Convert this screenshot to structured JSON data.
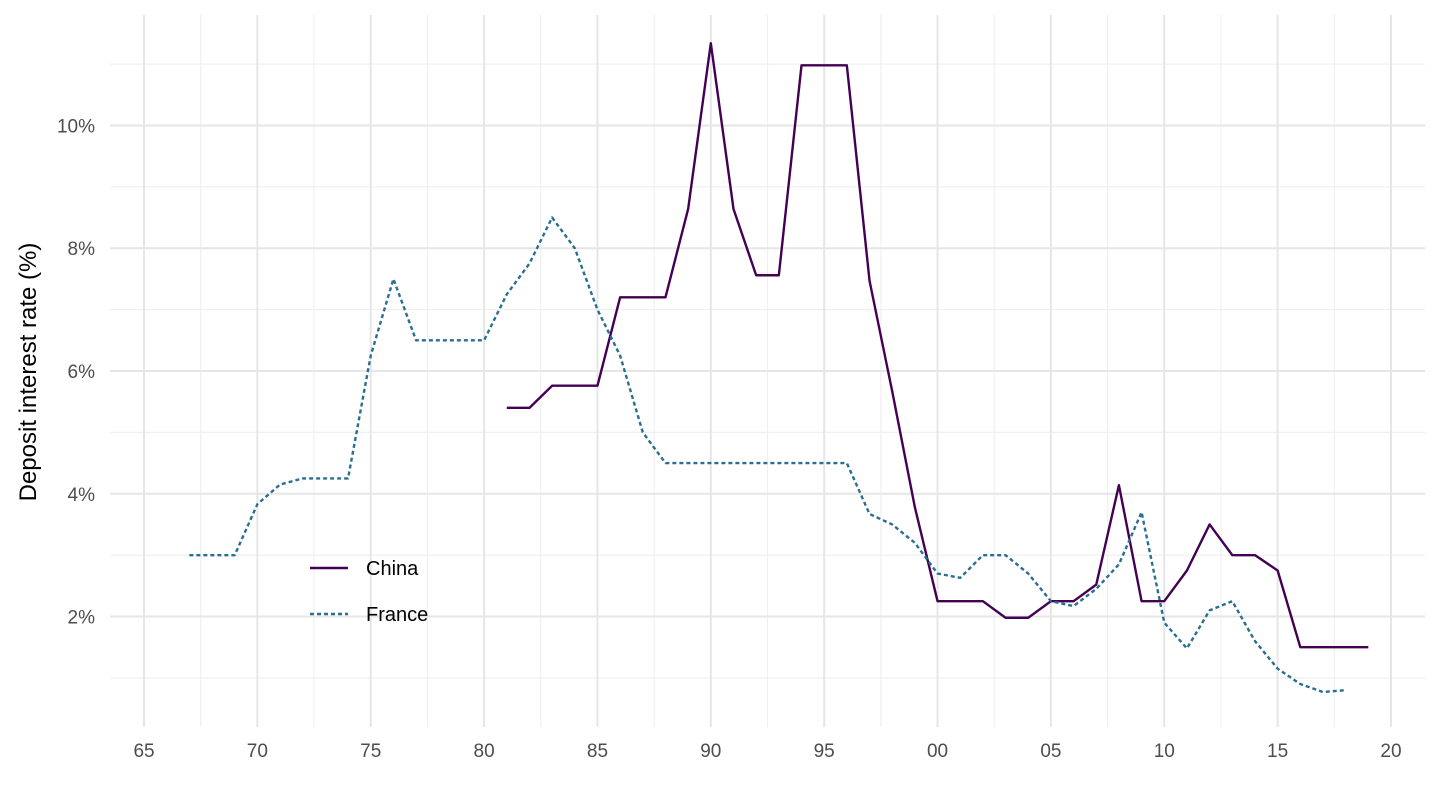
{
  "chart_data": {
    "type": "line",
    "title": "",
    "xlabel": "",
    "ylabel": "Deposit interest rate (%)",
    "xlim": [
      1963.5,
      2021.5
    ],
    "ylim": [
      0.2,
      11.8
    ],
    "x_ticks": [
      {
        "value": 1965,
        "label": "65"
      },
      {
        "value": 1970,
        "label": "70"
      },
      {
        "value": 1975,
        "label": "75"
      },
      {
        "value": 1980,
        "label": "80"
      },
      {
        "value": 1985,
        "label": "85"
      },
      {
        "value": 1990,
        "label": "90"
      },
      {
        "value": 1995,
        "label": "95"
      },
      {
        "value": 2000,
        "label": "00"
      },
      {
        "value": 2005,
        "label": "05"
      },
      {
        "value": 2010,
        "label": "10"
      },
      {
        "value": 2015,
        "label": "15"
      },
      {
        "value": 2020,
        "label": "20"
      }
    ],
    "y_ticks": [
      {
        "value": 2,
        "label": "2%"
      },
      {
        "value": 4,
        "label": "4%"
      },
      {
        "value": 6,
        "label": "6%"
      },
      {
        "value": 8,
        "label": "8%"
      },
      {
        "value": 10,
        "label": "10%"
      }
    ],
    "grid": true,
    "legend": "inside-bottom-left",
    "series": [
      {
        "name": "China",
        "color": "#440154",
        "dash": "solid",
        "x": [
          1981,
          1982,
          1983,
          1984,
          1985,
          1986,
          1987,
          1988,
          1989,
          1990,
          1991,
          1992,
          1993,
          1994,
          1995,
          1996,
          1997,
          1998,
          1999,
          2000,
          2001,
          2002,
          2003,
          2004,
          2005,
          2006,
          2007,
          2008,
          2009,
          2010,
          2011,
          2012,
          2013,
          2014,
          2015,
          2016,
          2017,
          2018,
          2019
        ],
        "y": [
          5.4,
          5.4,
          5.76,
          5.76,
          5.76,
          7.2,
          7.2,
          7.2,
          8.64,
          11.34,
          8.64,
          7.56,
          7.56,
          10.98,
          10.98,
          10.98,
          7.47,
          5.67,
          3.78,
          2.25,
          2.25,
          2.25,
          1.98,
          1.98,
          2.25,
          2.25,
          2.52,
          4.14,
          2.25,
          2.25,
          2.75,
          3.5,
          3.0,
          3.0,
          2.75,
          1.5,
          1.5,
          1.5,
          1.5
        ]
      },
      {
        "name": "France",
        "color": "#2a6f8f",
        "dash": "dotted",
        "x": [
          1967,
          1968,
          1969,
          1970,
          1971,
          1972,
          1973,
          1974,
          1975,
          1976,
          1977,
          1978,
          1979,
          1980,
          1981,
          1982,
          1983,
          1984,
          1985,
          1986,
          1987,
          1988,
          1989,
          1990,
          1991,
          1992,
          1993,
          1994,
          1995,
          1996,
          1997,
          1998,
          1999,
          2000,
          2001,
          2002,
          2003,
          2004,
          2005,
          2006,
          2007,
          2008,
          2009,
          2010,
          2011,
          2012,
          2013,
          2014,
          2015,
          2016,
          2017,
          2018
        ],
        "y": [
          3.0,
          3.0,
          3.0,
          3.83,
          4.15,
          4.25,
          4.25,
          4.25,
          6.25,
          7.5,
          6.5,
          6.5,
          6.5,
          6.5,
          7.25,
          7.75,
          8.5,
          8.0,
          7.0,
          6.25,
          5.0,
          4.5,
          4.5,
          4.5,
          4.5,
          4.5,
          4.5,
          4.5,
          4.5,
          4.5,
          3.67,
          3.5,
          3.2,
          2.7,
          2.63,
          3.0,
          3.0,
          2.7,
          2.25,
          2.17,
          2.45,
          2.85,
          3.7,
          1.9,
          1.48,
          2.1,
          2.25,
          1.6,
          1.15,
          0.9,
          0.77,
          0.8
        ]
      }
    ]
  }
}
